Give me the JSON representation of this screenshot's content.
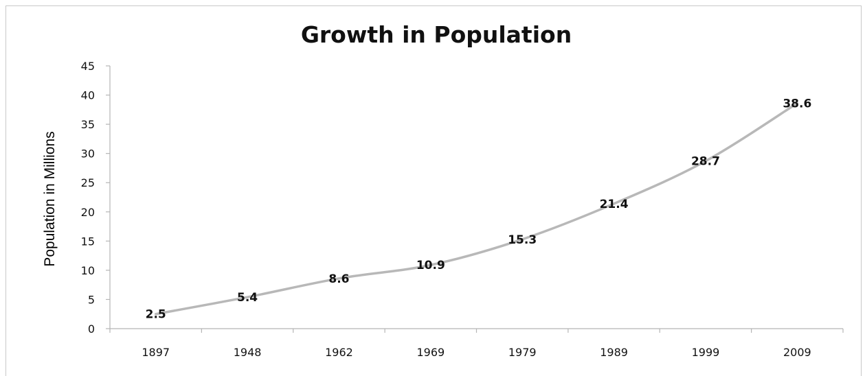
{
  "chart_data": {
    "type": "line",
    "title": "Growth in Population",
    "xlabel": "",
    "ylabel": "Population in Millions",
    "categories": [
      "1897",
      "1948",
      "1962",
      "1969",
      "1979",
      "1989",
      "1999",
      "2009"
    ],
    "series": [
      {
        "values": [
          2.5,
          5.4,
          8.6,
          10.9,
          15.3,
          21.4,
          28.7,
          38.6
        ],
        "color": "#b8b8b8"
      }
    ],
    "data_labels": [
      "2.5",
      "5.4",
      "8.6",
      "10.9",
      "15.3",
      "21.4",
      "28.7",
      "38.6"
    ],
    "ylim": [
      0,
      45
    ],
    "yticks": [
      0,
      5,
      10,
      15,
      20,
      25,
      30,
      35,
      40,
      45
    ],
    "ytick_labels": [
      "0",
      "5",
      "10",
      "15",
      "20",
      "25",
      "30",
      "35",
      "40",
      "45"
    ],
    "grid": false,
    "legend": "none",
    "smooth": true
  }
}
